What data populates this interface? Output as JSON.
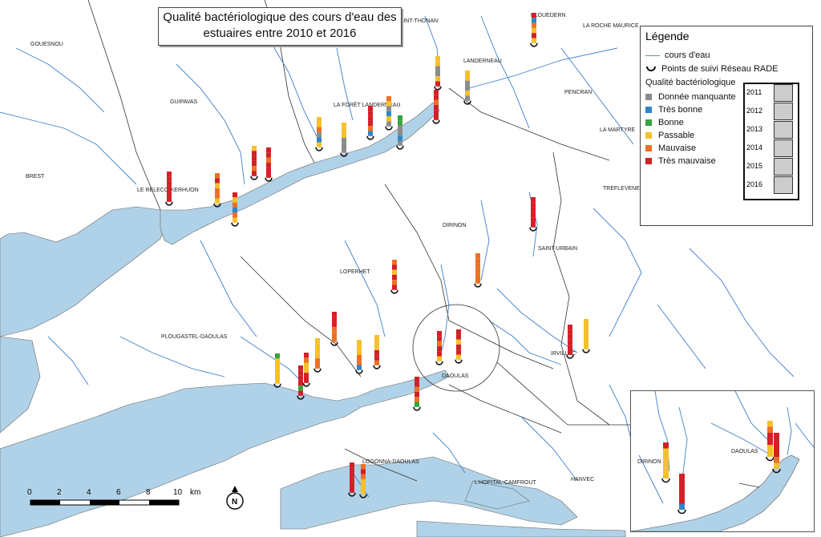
{
  "title": [
    "Qualité bactériologique des cours d'eau des",
    "estuaires entre 2010 et 2016"
  ],
  "colors": {
    "water": "#b0d2e8",
    "river": "#3f7fcc",
    "missing": "#8c8c8c",
    "very_good": "#2e86c9",
    "good": "#34a63a",
    "fair": "#f5c02c",
    "bad": "#ee7024",
    "very_bad": "#d42027"
  },
  "legend": {
    "title": "Légende",
    "river": "cours d'eau",
    "points": "Points de suivi Réseau RADE",
    "quality_title": "Qualité bactériologique",
    "classes": [
      {
        "label": "Donnée manquante",
        "key": "missing"
      },
      {
        "label": "Très bonne",
        "key": "very_good"
      },
      {
        "label": "Bonne",
        "key": "good"
      },
      {
        "label": "Passable",
        "key": "fair"
      },
      {
        "label": "Mauvaise",
        "key": "bad"
      },
      {
        "label": "Très mauvaise",
        "key": "very_bad"
      }
    ],
    "years": [
      "2011",
      "2012",
      "2013",
      "2014",
      "2015",
      "2016"
    ]
  },
  "places": [
    "GOUESNOU",
    "GUIPAVAS",
    "BREST",
    "LE RELECQ-KERHUON",
    "LA FORÊT LANDERNEAU",
    "LANDERNEAU",
    "PLOUEDERN",
    "LA ROCHE MAURICE",
    "PENCRAN",
    "LA MARTYRE",
    "TREFLEVENEZ",
    "DIRINON",
    "SAINT-URBAIN",
    "LOPERHET",
    "PLOUGASTEL-DAOULAS",
    "DAOULAS",
    "IRVILLAC",
    "LOGONNA-DAOULAS",
    "L'HOPITAL-CAMFROUT",
    "HANVEC",
    "SAINT-THONAN"
  ],
  "inset_places": [
    "DIRINON",
    "DAOULAS"
  ],
  "scalebar": {
    "ticks": [
      "0",
      "2",
      "4",
      "6",
      "8",
      "10"
    ],
    "unit": "km"
  },
  "north": "N"
}
